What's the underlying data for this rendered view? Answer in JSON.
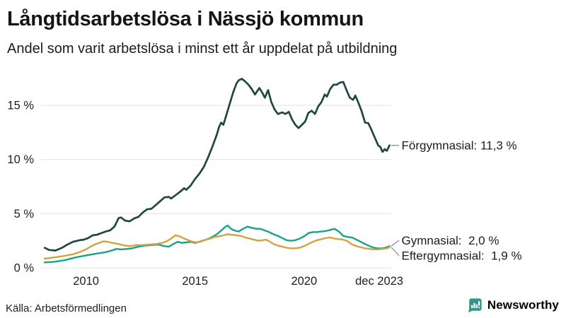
{
  "header": {
    "title": "Långtidsarbetslösa i Nässjö kommun",
    "subtitle": "Andel som varit arbetslösa i minst ett år uppdelat på utbildning"
  },
  "footer": {
    "source": "Källa: Arbetsförmedlingen",
    "brand_name": "Newsworthy",
    "brand_icon": "bar-chart-speech-bubble-icon"
  },
  "colors": {
    "background": "#ffffff",
    "title_text": "#151515",
    "text": "#1d1d1d",
    "gridline": "#e0e0e0",
    "connector": "#8f8f8f",
    "brand_teal": "#2f968a",
    "forgymnasial": "#1f4640",
    "gymnasial": "#16a38d",
    "eftergymnasial": "#d6a23f"
  },
  "chart_data": {
    "type": "line",
    "title": "Långtidsarbetslösa i Nässjö kommun",
    "subtitle": "Andel som varit arbetslösa i minst ett år uppdelat på utbildning",
    "xlabel": "",
    "ylabel": "",
    "x_range": [
      2008,
      2024
    ],
    "y_range": [
      0,
      17.5
    ],
    "grid": "horizontal-only",
    "legend_position": "end-of-line-annotations",
    "y_ticks": [
      {
        "value": 0,
        "label": "0 %"
      },
      {
        "value": 5,
        "label": "5 %"
      },
      {
        "value": 10,
        "label": "10 %"
      },
      {
        "value": 15,
        "label": "15 %"
      }
    ],
    "x_ticks": [
      {
        "value": 2010,
        "label": "2010"
      },
      {
        "value": 2015,
        "label": "2015"
      },
      {
        "value": 2020,
        "label": "2020"
      },
      {
        "value": 2023.92,
        "label": "dec 2023",
        "anchor": "end"
      }
    ],
    "series": [
      {
        "name": "Förgymnasial",
        "color": "#1f4640",
        "last_value": 11.3,
        "annotation": "Förgymnasial: 11,3 %",
        "points": [
          [
            2008.1,
            1.85
          ],
          [
            2008.3,
            1.65
          ],
          [
            2008.6,
            1.6
          ],
          [
            2008.9,
            1.85
          ],
          [
            2009.1,
            2.1
          ],
          [
            2009.4,
            2.4
          ],
          [
            2009.7,
            2.55
          ],
          [
            2009.9,
            2.6
          ],
          [
            2010.1,
            2.75
          ],
          [
            2010.3,
            3.0
          ],
          [
            2010.5,
            3.05
          ],
          [
            2010.7,
            3.2
          ],
          [
            2010.9,
            3.35
          ],
          [
            2011.1,
            3.45
          ],
          [
            2011.3,
            3.8
          ],
          [
            2011.5,
            4.6
          ],
          [
            2011.6,
            4.65
          ],
          [
            2011.8,
            4.35
          ],
          [
            2012.0,
            4.3
          ],
          [
            2012.2,
            4.55
          ],
          [
            2012.4,
            4.7
          ],
          [
            2012.6,
            5.1
          ],
          [
            2012.8,
            5.4
          ],
          [
            2013.0,
            5.45
          ],
          [
            2013.2,
            5.8
          ],
          [
            2013.4,
            6.15
          ],
          [
            2013.6,
            6.5
          ],
          [
            2013.8,
            6.55
          ],
          [
            2013.9,
            6.4
          ],
          [
            2014.1,
            6.7
          ],
          [
            2014.3,
            7.0
          ],
          [
            2014.5,
            7.35
          ],
          [
            2014.6,
            7.2
          ],
          [
            2014.8,
            7.6
          ],
          [
            2015.0,
            8.2
          ],
          [
            2015.2,
            8.7
          ],
          [
            2015.4,
            9.3
          ],
          [
            2015.6,
            10.2
          ],
          [
            2015.8,
            11.2
          ],
          [
            2016.0,
            12.3
          ],
          [
            2016.1,
            13.0
          ],
          [
            2016.2,
            13.4
          ],
          [
            2016.3,
            13.2
          ],
          [
            2016.45,
            14.2
          ],
          [
            2016.6,
            15.2
          ],
          [
            2016.75,
            16.2
          ],
          [
            2016.9,
            17.0
          ],
          [
            2017.0,
            17.3
          ],
          [
            2017.15,
            17.45
          ],
          [
            2017.3,
            17.2
          ],
          [
            2017.45,
            16.9
          ],
          [
            2017.6,
            16.5
          ],
          [
            2017.75,
            16.0
          ],
          [
            2017.85,
            16.3
          ],
          [
            2017.95,
            16.6
          ],
          [
            2018.1,
            16.1
          ],
          [
            2018.2,
            15.7
          ],
          [
            2018.35,
            16.4
          ],
          [
            2018.5,
            15.3
          ],
          [
            2018.65,
            14.6
          ],
          [
            2018.8,
            14.2
          ],
          [
            2019.0,
            14.35
          ],
          [
            2019.15,
            14.2
          ],
          [
            2019.3,
            14.4
          ],
          [
            2019.45,
            13.7
          ],
          [
            2019.6,
            13.2
          ],
          [
            2019.75,
            12.9
          ],
          [
            2019.9,
            13.2
          ],
          [
            2020.05,
            13.5
          ],
          [
            2020.2,
            14.3
          ],
          [
            2020.35,
            14.5
          ],
          [
            2020.5,
            14.2
          ],
          [
            2020.65,
            14.9
          ],
          [
            2020.8,
            15.3
          ],
          [
            2020.95,
            16.0
          ],
          [
            2021.05,
            15.8
          ],
          [
            2021.2,
            16.5
          ],
          [
            2021.35,
            16.9
          ],
          [
            2021.5,
            16.9
          ],
          [
            2021.65,
            17.1
          ],
          [
            2021.8,
            17.15
          ],
          [
            2021.95,
            16.4
          ],
          [
            2022.1,
            15.7
          ],
          [
            2022.25,
            15.5
          ],
          [
            2022.35,
            15.9
          ],
          [
            2022.5,
            15.2
          ],
          [
            2022.65,
            14.4
          ],
          [
            2022.8,
            13.4
          ],
          [
            2022.95,
            13.35
          ],
          [
            2023.1,
            12.7
          ],
          [
            2023.25,
            12.0
          ],
          [
            2023.4,
            11.3
          ],
          [
            2023.5,
            11.15
          ],
          [
            2023.6,
            10.7
          ],
          [
            2023.7,
            10.95
          ],
          [
            2023.8,
            10.8
          ],
          [
            2023.92,
            11.3
          ]
        ]
      },
      {
        "name": "Gymnasial",
        "color": "#16a38d",
        "last_value": 2.0,
        "annotation": "Gymnasial:  2,0 %",
        "points": [
          [
            2008.1,
            0.5
          ],
          [
            2008.5,
            0.55
          ],
          [
            2009.0,
            0.7
          ],
          [
            2009.5,
            0.95
          ],
          [
            2010.0,
            1.15
          ],
          [
            2010.3,
            1.25
          ],
          [
            2010.6,
            1.35
          ],
          [
            2010.9,
            1.45
          ],
          [
            2011.1,
            1.55
          ],
          [
            2011.4,
            1.75
          ],
          [
            2011.6,
            1.7
          ],
          [
            2011.9,
            1.75
          ],
          [
            2012.1,
            1.8
          ],
          [
            2012.4,
            1.95
          ],
          [
            2012.7,
            2.05
          ],
          [
            2013.0,
            2.1
          ],
          [
            2013.3,
            2.15
          ],
          [
            2013.6,
            2.0
          ],
          [
            2013.8,
            1.95
          ],
          [
            2014.0,
            2.2
          ],
          [
            2014.2,
            2.4
          ],
          [
            2014.4,
            2.3
          ],
          [
            2014.6,
            2.35
          ],
          [
            2014.8,
            2.4
          ],
          [
            2015.0,
            2.3
          ],
          [
            2015.2,
            2.4
          ],
          [
            2015.5,
            2.6
          ],
          [
            2015.7,
            2.75
          ],
          [
            2016.0,
            3.1
          ],
          [
            2016.2,
            3.45
          ],
          [
            2016.4,
            3.8
          ],
          [
            2016.5,
            3.9
          ],
          [
            2016.65,
            3.6
          ],
          [
            2016.8,
            3.45
          ],
          [
            2017.0,
            3.35
          ],
          [
            2017.2,
            3.6
          ],
          [
            2017.4,
            3.8
          ],
          [
            2017.6,
            3.7
          ],
          [
            2017.8,
            3.6
          ],
          [
            2018.0,
            3.6
          ],
          [
            2018.2,
            3.45
          ],
          [
            2018.4,
            3.3
          ],
          [
            2018.6,
            3.1
          ],
          [
            2018.8,
            2.95
          ],
          [
            2019.0,
            2.75
          ],
          [
            2019.2,
            2.55
          ],
          [
            2019.4,
            2.5
          ],
          [
            2019.6,
            2.55
          ],
          [
            2019.8,
            2.7
          ],
          [
            2020.0,
            2.9
          ],
          [
            2020.2,
            3.2
          ],
          [
            2020.4,
            3.3
          ],
          [
            2020.6,
            3.3
          ],
          [
            2020.8,
            3.35
          ],
          [
            2021.0,
            3.4
          ],
          [
            2021.2,
            3.5
          ],
          [
            2021.4,
            3.6
          ],
          [
            2021.6,
            3.35
          ],
          [
            2021.8,
            2.95
          ],
          [
            2022.0,
            2.85
          ],
          [
            2022.2,
            2.8
          ],
          [
            2022.4,
            2.6
          ],
          [
            2022.6,
            2.4
          ],
          [
            2022.8,
            2.2
          ],
          [
            2023.0,
            2.0
          ],
          [
            2023.2,
            1.85
          ],
          [
            2023.4,
            1.8
          ],
          [
            2023.6,
            1.8
          ],
          [
            2023.8,
            1.9
          ],
          [
            2023.92,
            2.0
          ]
        ]
      },
      {
        "name": "Eftergymnasial",
        "color": "#d6a23f",
        "last_value": 1.9,
        "annotation": "Eftergymnasial:  1,9 %",
        "points": [
          [
            2008.1,
            0.85
          ],
          [
            2008.5,
            0.95
          ],
          [
            2009.0,
            1.1
          ],
          [
            2009.4,
            1.25
          ],
          [
            2009.7,
            1.45
          ],
          [
            2010.0,
            1.7
          ],
          [
            2010.2,
            1.95
          ],
          [
            2010.4,
            2.15
          ],
          [
            2010.6,
            2.3
          ],
          [
            2010.8,
            2.45
          ],
          [
            2011.0,
            2.4
          ],
          [
            2011.2,
            2.3
          ],
          [
            2011.5,
            2.2
          ],
          [
            2011.8,
            2.05
          ],
          [
            2012.0,
            2.0
          ],
          [
            2012.3,
            2.1
          ],
          [
            2012.6,
            2.1
          ],
          [
            2012.9,
            2.15
          ],
          [
            2013.2,
            2.2
          ],
          [
            2013.5,
            2.3
          ],
          [
            2013.7,
            2.45
          ],
          [
            2013.9,
            2.7
          ],
          [
            2014.1,
            3.0
          ],
          [
            2014.3,
            2.9
          ],
          [
            2014.5,
            2.7
          ],
          [
            2014.7,
            2.55
          ],
          [
            2014.9,
            2.4
          ],
          [
            2015.1,
            2.35
          ],
          [
            2015.3,
            2.5
          ],
          [
            2015.5,
            2.6
          ],
          [
            2015.7,
            2.7
          ],
          [
            2015.9,
            2.85
          ],
          [
            2016.1,
            2.9
          ],
          [
            2016.3,
            3.0
          ],
          [
            2016.5,
            3.1
          ],
          [
            2016.7,
            3.05
          ],
          [
            2016.9,
            3.0
          ],
          [
            2017.1,
            2.95
          ],
          [
            2017.3,
            2.8
          ],
          [
            2017.5,
            2.7
          ],
          [
            2017.7,
            2.6
          ],
          [
            2017.9,
            2.5
          ],
          [
            2018.1,
            2.55
          ],
          [
            2018.25,
            2.6
          ],
          [
            2018.4,
            2.45
          ],
          [
            2018.6,
            2.2
          ],
          [
            2018.8,
            2.05
          ],
          [
            2019.0,
            1.95
          ],
          [
            2019.2,
            1.85
          ],
          [
            2019.4,
            1.8
          ],
          [
            2019.6,
            1.8
          ],
          [
            2019.8,
            1.85
          ],
          [
            2020.0,
            2.0
          ],
          [
            2020.2,
            2.2
          ],
          [
            2020.4,
            2.4
          ],
          [
            2020.6,
            2.55
          ],
          [
            2020.8,
            2.65
          ],
          [
            2021.0,
            2.75
          ],
          [
            2021.2,
            2.8
          ],
          [
            2021.4,
            2.7
          ],
          [
            2021.6,
            2.65
          ],
          [
            2021.8,
            2.6
          ],
          [
            2022.0,
            2.45
          ],
          [
            2022.2,
            2.15
          ],
          [
            2022.4,
            2.0
          ],
          [
            2022.6,
            1.9
          ],
          [
            2022.8,
            1.8
          ],
          [
            2023.0,
            1.75
          ],
          [
            2023.2,
            1.7
          ],
          [
            2023.4,
            1.7
          ],
          [
            2023.6,
            1.75
          ],
          [
            2023.8,
            1.8
          ],
          [
            2023.92,
            1.9
          ]
        ]
      }
    ]
  }
}
